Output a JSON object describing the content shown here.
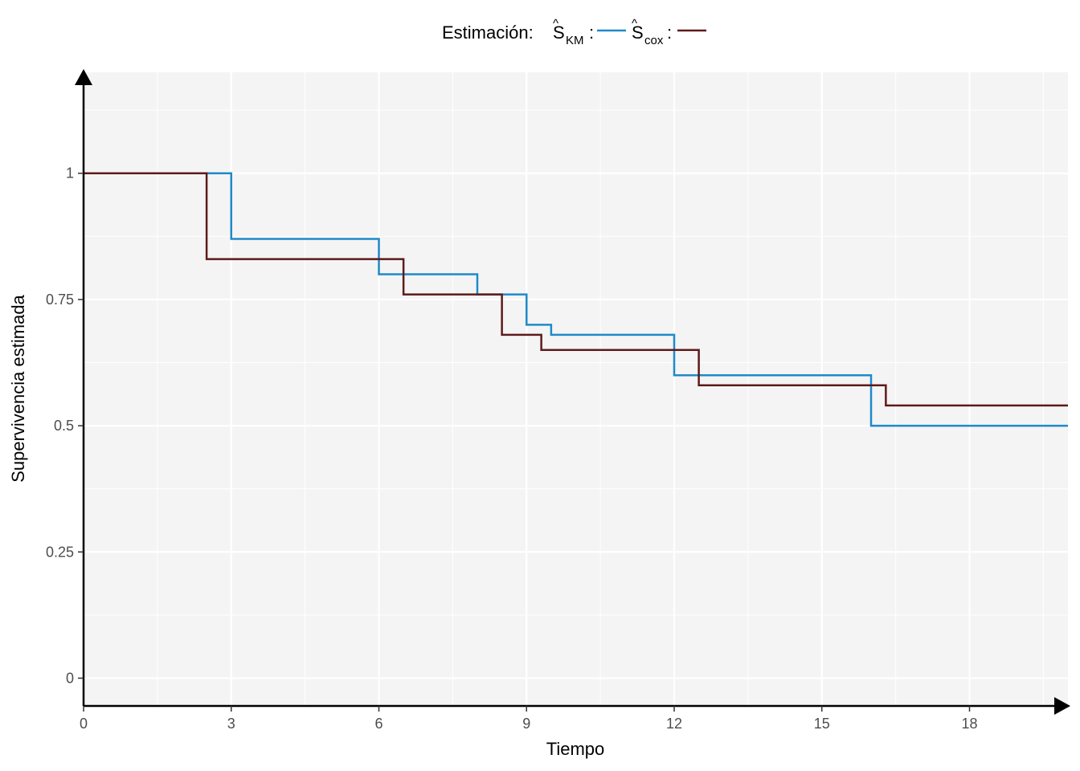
{
  "chart_data": {
    "type": "line",
    "step": true,
    "xlabel": "Tiempo",
    "ylabel": "Supervivencia estimada",
    "xlim": [
      0,
      20
    ],
    "ylim": [
      -0.055,
      1.2
    ],
    "x_ticks": [
      0,
      3,
      6,
      9,
      12,
      15,
      18
    ],
    "x_tick_labels": [
      "0",
      "3",
      "6",
      "9",
      "12",
      "15",
      "18"
    ],
    "y_ticks": [
      0,
      0.25,
      0.5,
      0.75,
      1
    ],
    "y_tick_labels": [
      "0",
      "0.25",
      "0.5",
      "0.75",
      "1"
    ],
    "grid": true,
    "legend": {
      "position": "top",
      "title": "Estimación:",
      "entries": [
        {
          "label": "S",
          "sub": "KM",
          "suffix": ":",
          "color": "#1f8ac9"
        },
        {
          "label": "S",
          "sub": "cox",
          "suffix": ":",
          "color": "#5e1a1a"
        }
      ]
    },
    "series": [
      {
        "color": "#1f8ac9",
        "x": [
          0,
          3,
          6,
          8,
          9,
          9.5,
          12,
          16,
          20
        ],
        "y": [
          1,
          0.87,
          0.8,
          0.76,
          0.7,
          0.68,
          0.6,
          0.5,
          0.5
        ]
      },
      {
        "color": "#5e1a1a",
        "x": [
          0,
          2.5,
          6.5,
          8.5,
          9.3,
          12.5,
          16.3,
          20
        ],
        "y": [
          1,
          0.83,
          0.76,
          0.68,
          0.65,
          0.58,
          0.54,
          0.54
        ]
      }
    ],
    "colors": {
      "panel_bg": "#f4f4f4",
      "grid_major": "#ffffff",
      "axis": "#000000"
    }
  }
}
